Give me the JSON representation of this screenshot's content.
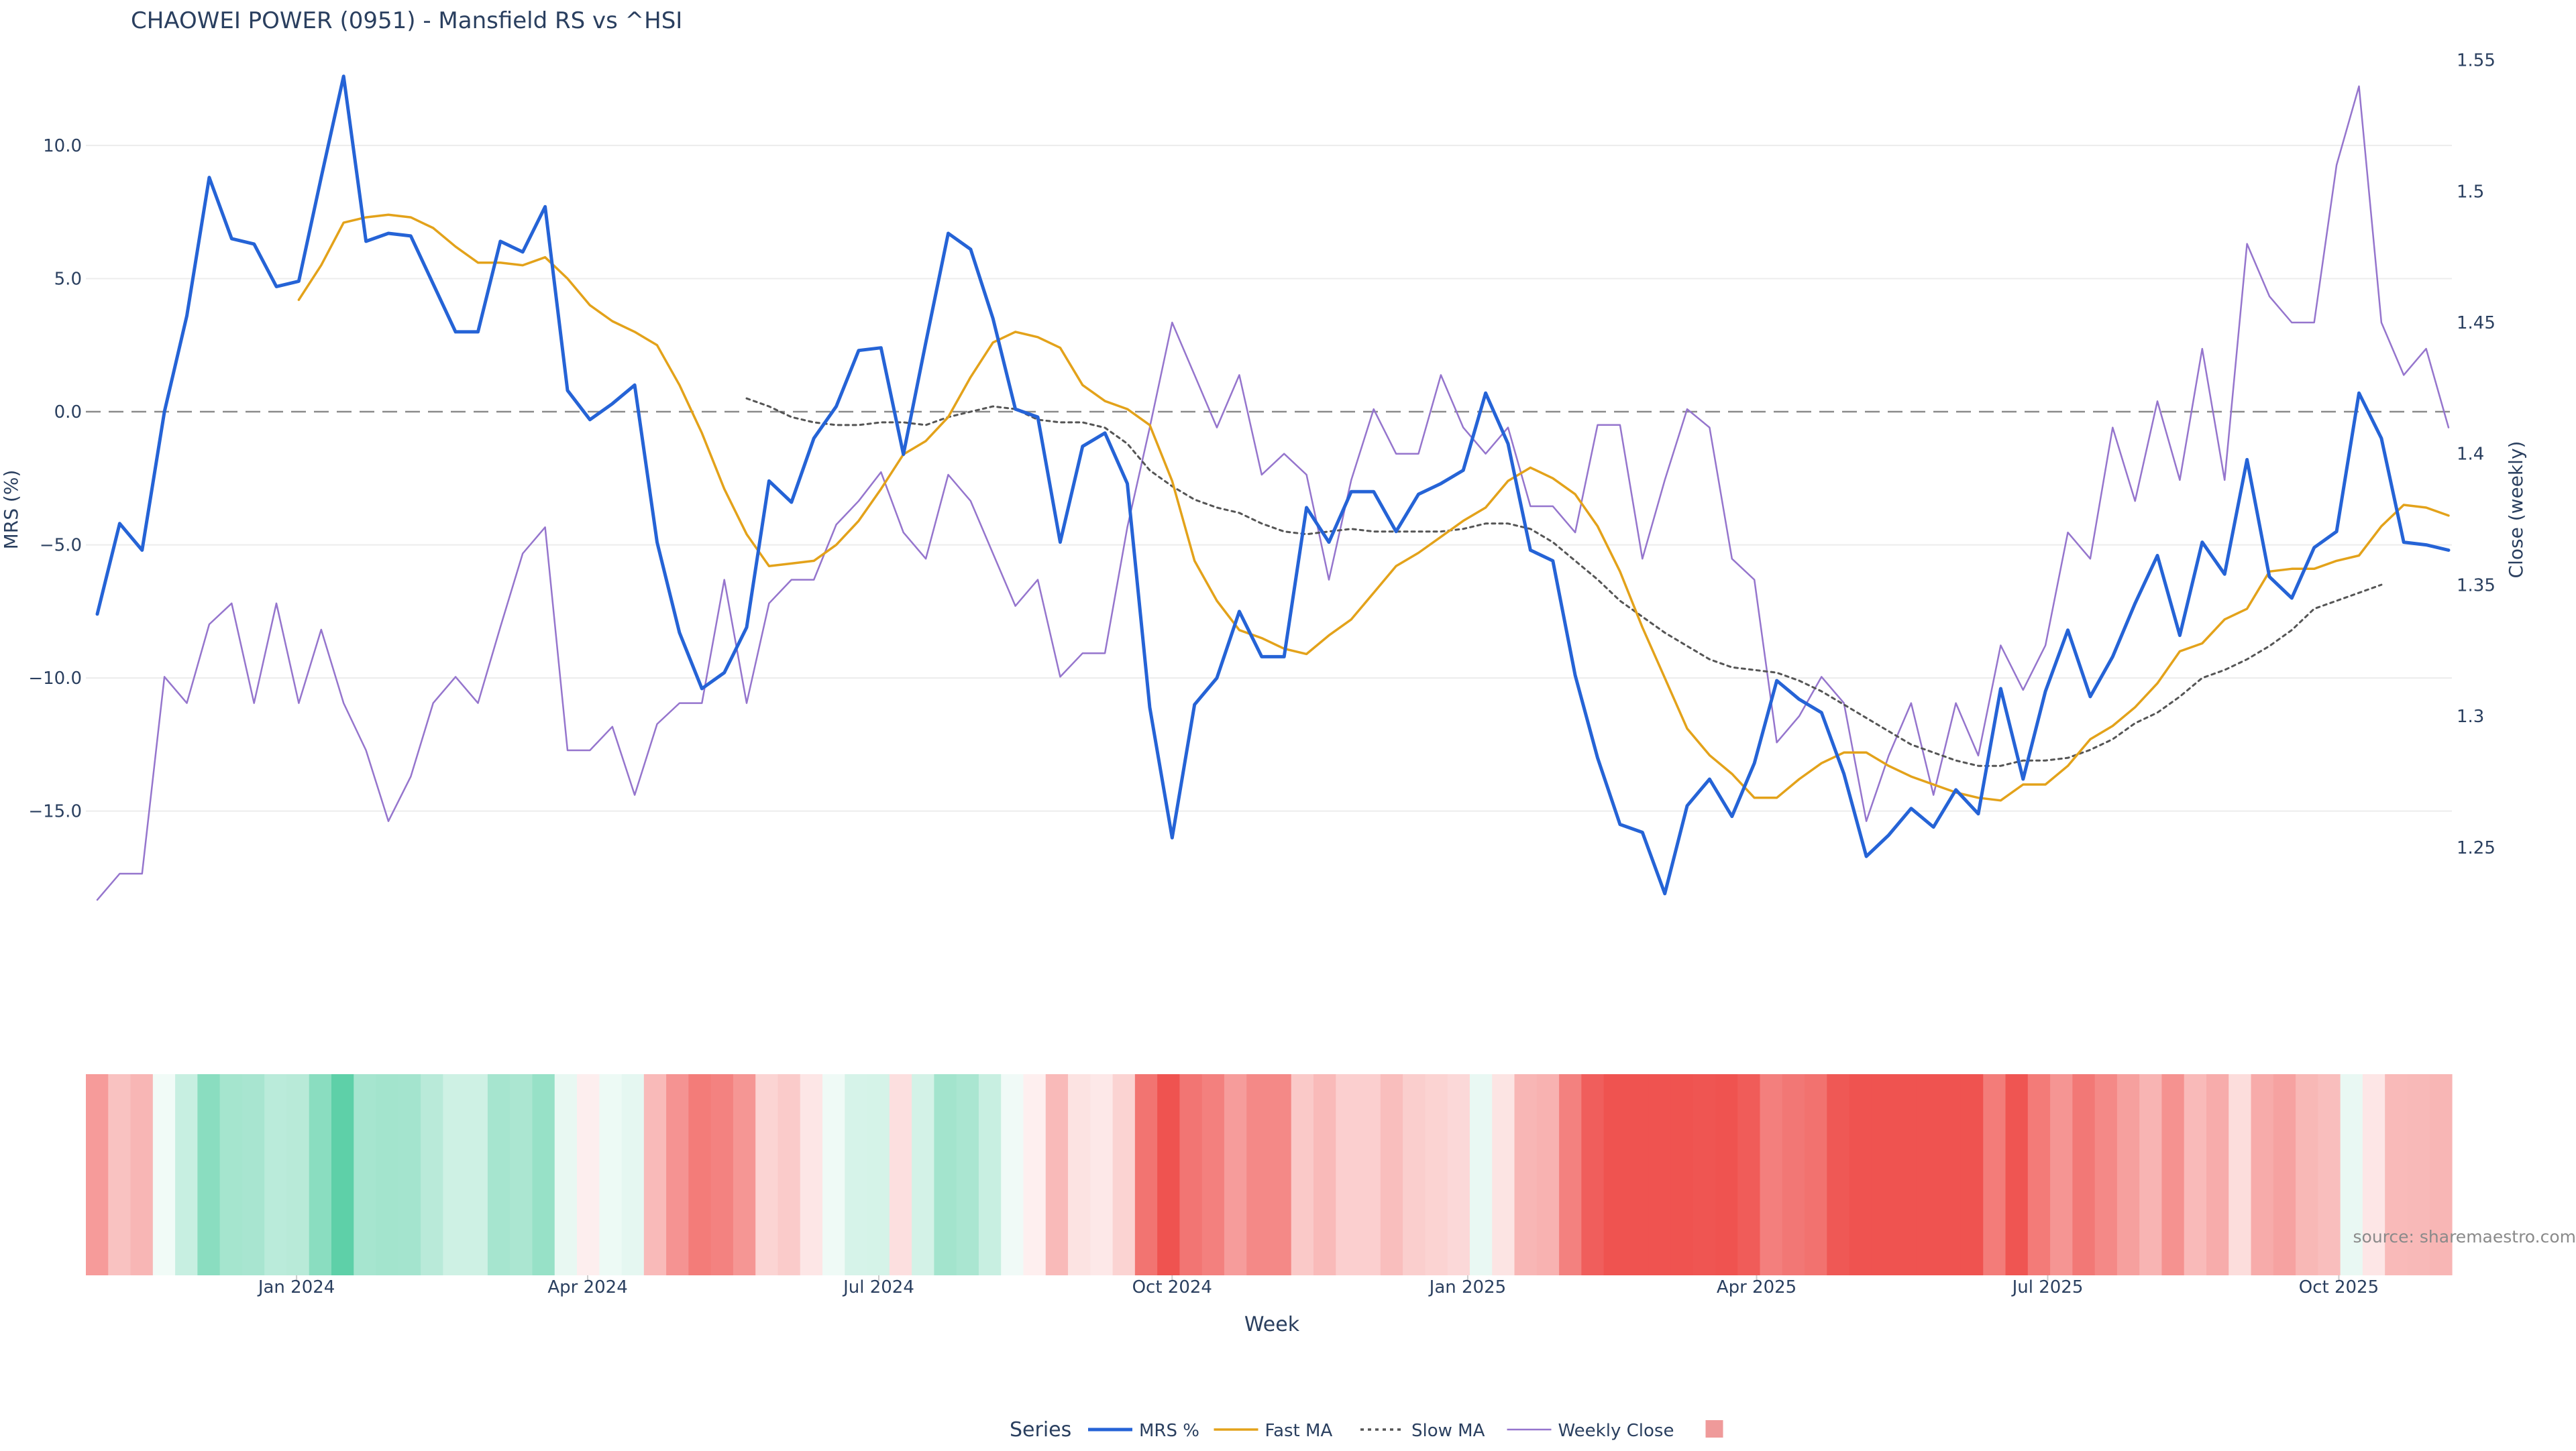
{
  "title": "CHAOWEI POWER (0951) - Mansfield RS vs ^HSI",
  "source_note": "source: sharemaestro.com",
  "legend": {
    "title": "Series",
    "items": [
      {
        "label": "MRS %",
        "color": "#2563d6",
        "style": "solid-thick"
      },
      {
        "label": "Fast MA",
        "color": "#e3a21a",
        "style": "solid"
      },
      {
        "label": "Slow MA",
        "color": "#555555",
        "style": "dotted"
      },
      {
        "label": "Weekly Close",
        "color": "#9575cd",
        "style": "solid-thin"
      },
      {
        "label": "",
        "color": "#ef9a9a",
        "style": "swatch"
      }
    ]
  },
  "chart_data": {
    "type": "line",
    "xlabel": "Week",
    "ylabel_left": "MRS (%)",
    "ylabel_right": "Close (weekly)",
    "x_tick_labels": [
      "Jan 2024",
      "Apr 2024",
      "Jul 2024",
      "Oct 2024",
      "Jan 2025",
      "Apr 2025",
      "Jul 2025",
      "Oct 2025"
    ],
    "x_tick_weeks": [
      8.9,
      21.9,
      34.9,
      48.0,
      61.2,
      74.1,
      87.1,
      100.1
    ],
    "y_left_ticks": [
      "10.0",
      "5.0",
      "0.0",
      "−5.0",
      "−10.0",
      "−15.0"
    ],
    "y_left_tick_values": [
      10,
      5,
      0,
      -5,
      -10,
      -15
    ],
    "y_right_ticks": [
      "1.55",
      "1.5",
      "1.45",
      "1.4",
      "1.35",
      "1.3",
      "1.25"
    ],
    "y_right_tick_values": [
      1.55,
      1.5,
      1.45,
      1.4,
      1.35,
      1.3,
      1.25
    ],
    "y_left_range": [
      -20.8,
      13.7
    ],
    "y_right_range": [
      1.205,
      1.555
    ],
    "zero_line": true,
    "grid": true,
    "series": [
      {
        "name": "MRS %",
        "color": "#2563d6",
        "start": 0,
        "values": [
          -7.6,
          -4.2,
          -5.2,
          0.0,
          3.6,
          8.8,
          6.5,
          6.3,
          4.7,
          4.9,
          8.8,
          12.6,
          6.4,
          6.7,
          6.6,
          4.8,
          3.0,
          3.0,
          6.4,
          6.0,
          7.7,
          0.8,
          -0.3,
          0.3,
          1.0,
          -4.9,
          -8.3,
          -10.4,
          -9.8,
          -8.1,
          -2.6,
          -3.4,
          -1.0,
          0.2,
          2.3,
          2.4,
          -1.6,
          2.6,
          6.7,
          6.1,
          3.5,
          0.1,
          -0.2,
          -4.9,
          -1.3,
          -0.8,
          -2.7,
          -11.1,
          -16.0,
          -11.0,
          -10.0,
          -7.5,
          -9.2,
          -9.2,
          -3.6,
          -4.9,
          -3.0,
          -3.0,
          -4.5,
          -3.1,
          -2.7,
          -2.2,
          0.7,
          -1.2,
          -5.2,
          -5.6,
          -9.9,
          -13.0,
          -15.5,
          -15.8,
          -18.1,
          -14.8,
          -13.8,
          -15.2,
          -13.2,
          -10.1,
          -10.8,
          -11.3,
          -13.6,
          -16.7,
          -15.9,
          -14.9,
          -15.6,
          -14.2,
          -15.1,
          -10.4,
          -13.8,
          -10.5,
          -8.2,
          -10.7,
          -9.2,
          -7.2,
          -5.4,
          -8.4,
          -4.9,
          -6.1,
          -1.8,
          -6.2,
          -7.0,
          -5.1,
          -4.5,
          0.7,
          -1.0,
          -4.9,
          -5.0,
          -5.2
        ]
      },
      {
        "name": "Fast MA",
        "color": "#e3a21a",
        "start": 9,
        "values": [
          4.2,
          5.5,
          7.1,
          7.3,
          7.4,
          7.3,
          6.9,
          6.2,
          5.6,
          5.6,
          5.5,
          5.8,
          5.0,
          4.0,
          3.4,
          3.0,
          2.5,
          1.0,
          -0.8,
          -2.9,
          -4.6,
          -5.8,
          -5.7,
          -5.6,
          -5.0,
          -4.1,
          -2.9,
          -1.6,
          -1.1,
          -0.2,
          1.3,
          2.6,
          3.0,
          2.8,
          2.4,
          1.0,
          0.4,
          0.1,
          -0.5,
          -2.6,
          -5.6,
          -7.1,
          -8.2,
          -8.5,
          -8.9,
          -9.1,
          -8.4,
          -7.8,
          -6.8,
          -5.8,
          -5.3,
          -4.7,
          -4.1,
          -3.6,
          -2.6,
          -2.1,
          -2.5,
          -3.1,
          -4.3,
          -6.0,
          -8.1,
          -10.0,
          -11.9,
          -12.9,
          -13.6,
          -14.5,
          -14.5,
          -13.8,
          -13.2,
          -12.8,
          -12.8,
          -13.3,
          -13.7,
          -14.0,
          -14.3,
          -14.5,
          -14.6,
          -14.0,
          -14.0,
          -13.3,
          -12.3,
          -11.8,
          -11.1,
          -10.2,
          -9.0,
          -8.7,
          -7.8,
          -7.4,
          -6.0,
          -5.9,
          -5.9,
          -5.6,
          -5.4,
          -4.3,
          -3.5,
          -3.6,
          -3.9
        ]
      },
      {
        "name": "Slow MA",
        "color": "#555555",
        "start": 29,
        "values": [
          0.5,
          0.2,
          -0.2,
          -0.4,
          -0.5,
          -0.5,
          -0.4,
          -0.4,
          -0.5,
          -0.2,
          0.0,
          0.2,
          0.1,
          -0.3,
          -0.4,
          -0.4,
          -0.6,
          -1.2,
          -2.2,
          -2.8,
          -3.3,
          -3.6,
          -3.8,
          -4.2,
          -4.5,
          -4.6,
          -4.5,
          -4.4,
          -4.5,
          -4.5,
          -4.5,
          -4.5,
          -4.4,
          -4.2,
          -4.2,
          -4.4,
          -4.9,
          -5.6,
          -6.3,
          -7.1,
          -7.7,
          -8.3,
          -8.8,
          -9.3,
          -9.6,
          -9.7,
          -9.8,
          -10.1,
          -10.5,
          -11.0,
          -11.5,
          -12.0,
          -12.5,
          -12.8,
          -13.1,
          -13.3,
          -13.3,
          -13.1,
          -13.1,
          -13.0,
          -12.7,
          -12.3,
          -11.7,
          -11.3,
          -10.7,
          -10.0,
          -9.7,
          -9.3,
          -8.8,
          -8.2,
          -7.4,
          -7.1,
          -6.8,
          -6.5
        ]
      },
      {
        "name": "Weekly Close",
        "color": "#9575cd",
        "start": 0,
        "axis": "right",
        "values": [
          1.23,
          1.24,
          1.24,
          1.315,
          1.305,
          1.335,
          1.343,
          1.305,
          1.343,
          1.305,
          1.333,
          1.305,
          1.287,
          1.26,
          1.277,
          1.305,
          1.315,
          1.305,
          1.334,
          1.362,
          1.372,
          1.287,
          1.287,
          1.296,
          1.27,
          1.297,
          1.305,
          1.305,
          1.352,
          1.305,
          1.343,
          1.352,
          1.352,
          1.373,
          1.382,
          1.393,
          1.37,
          1.36,
          1.392,
          1.382,
          1.362,
          1.342,
          1.352,
          1.315,
          1.324,
          1.324,
          1.372,
          1.41,
          1.45,
          1.43,
          1.41,
          1.43,
          1.392,
          1.4,
          1.392,
          1.352,
          1.39,
          1.417,
          1.4,
          1.4,
          1.43,
          1.41,
          1.4,
          1.41,
          1.38,
          1.38,
          1.37,
          1.411,
          1.411,
          1.36,
          1.39,
          1.417,
          1.41,
          1.36,
          1.352,
          1.29,
          1.3,
          1.315,
          1.305,
          1.26,
          1.285,
          1.305,
          1.27,
          1.305,
          1.285,
          1.327,
          1.31,
          1.327,
          1.37,
          1.36,
          1.41,
          1.382,
          1.42,
          1.39,
          1.44,
          1.39,
          1.48,
          1.46,
          1.45,
          1.45,
          1.51,
          1.54,
          1.45,
          1.43,
          1.44,
          1.41
        ]
      }
    ],
    "heatmap_strip": {
      "description_values_are_mrs_per_week": true,
      "color_negative": "#ef5350",
      "color_positive": "#4ecb9f"
    }
  }
}
